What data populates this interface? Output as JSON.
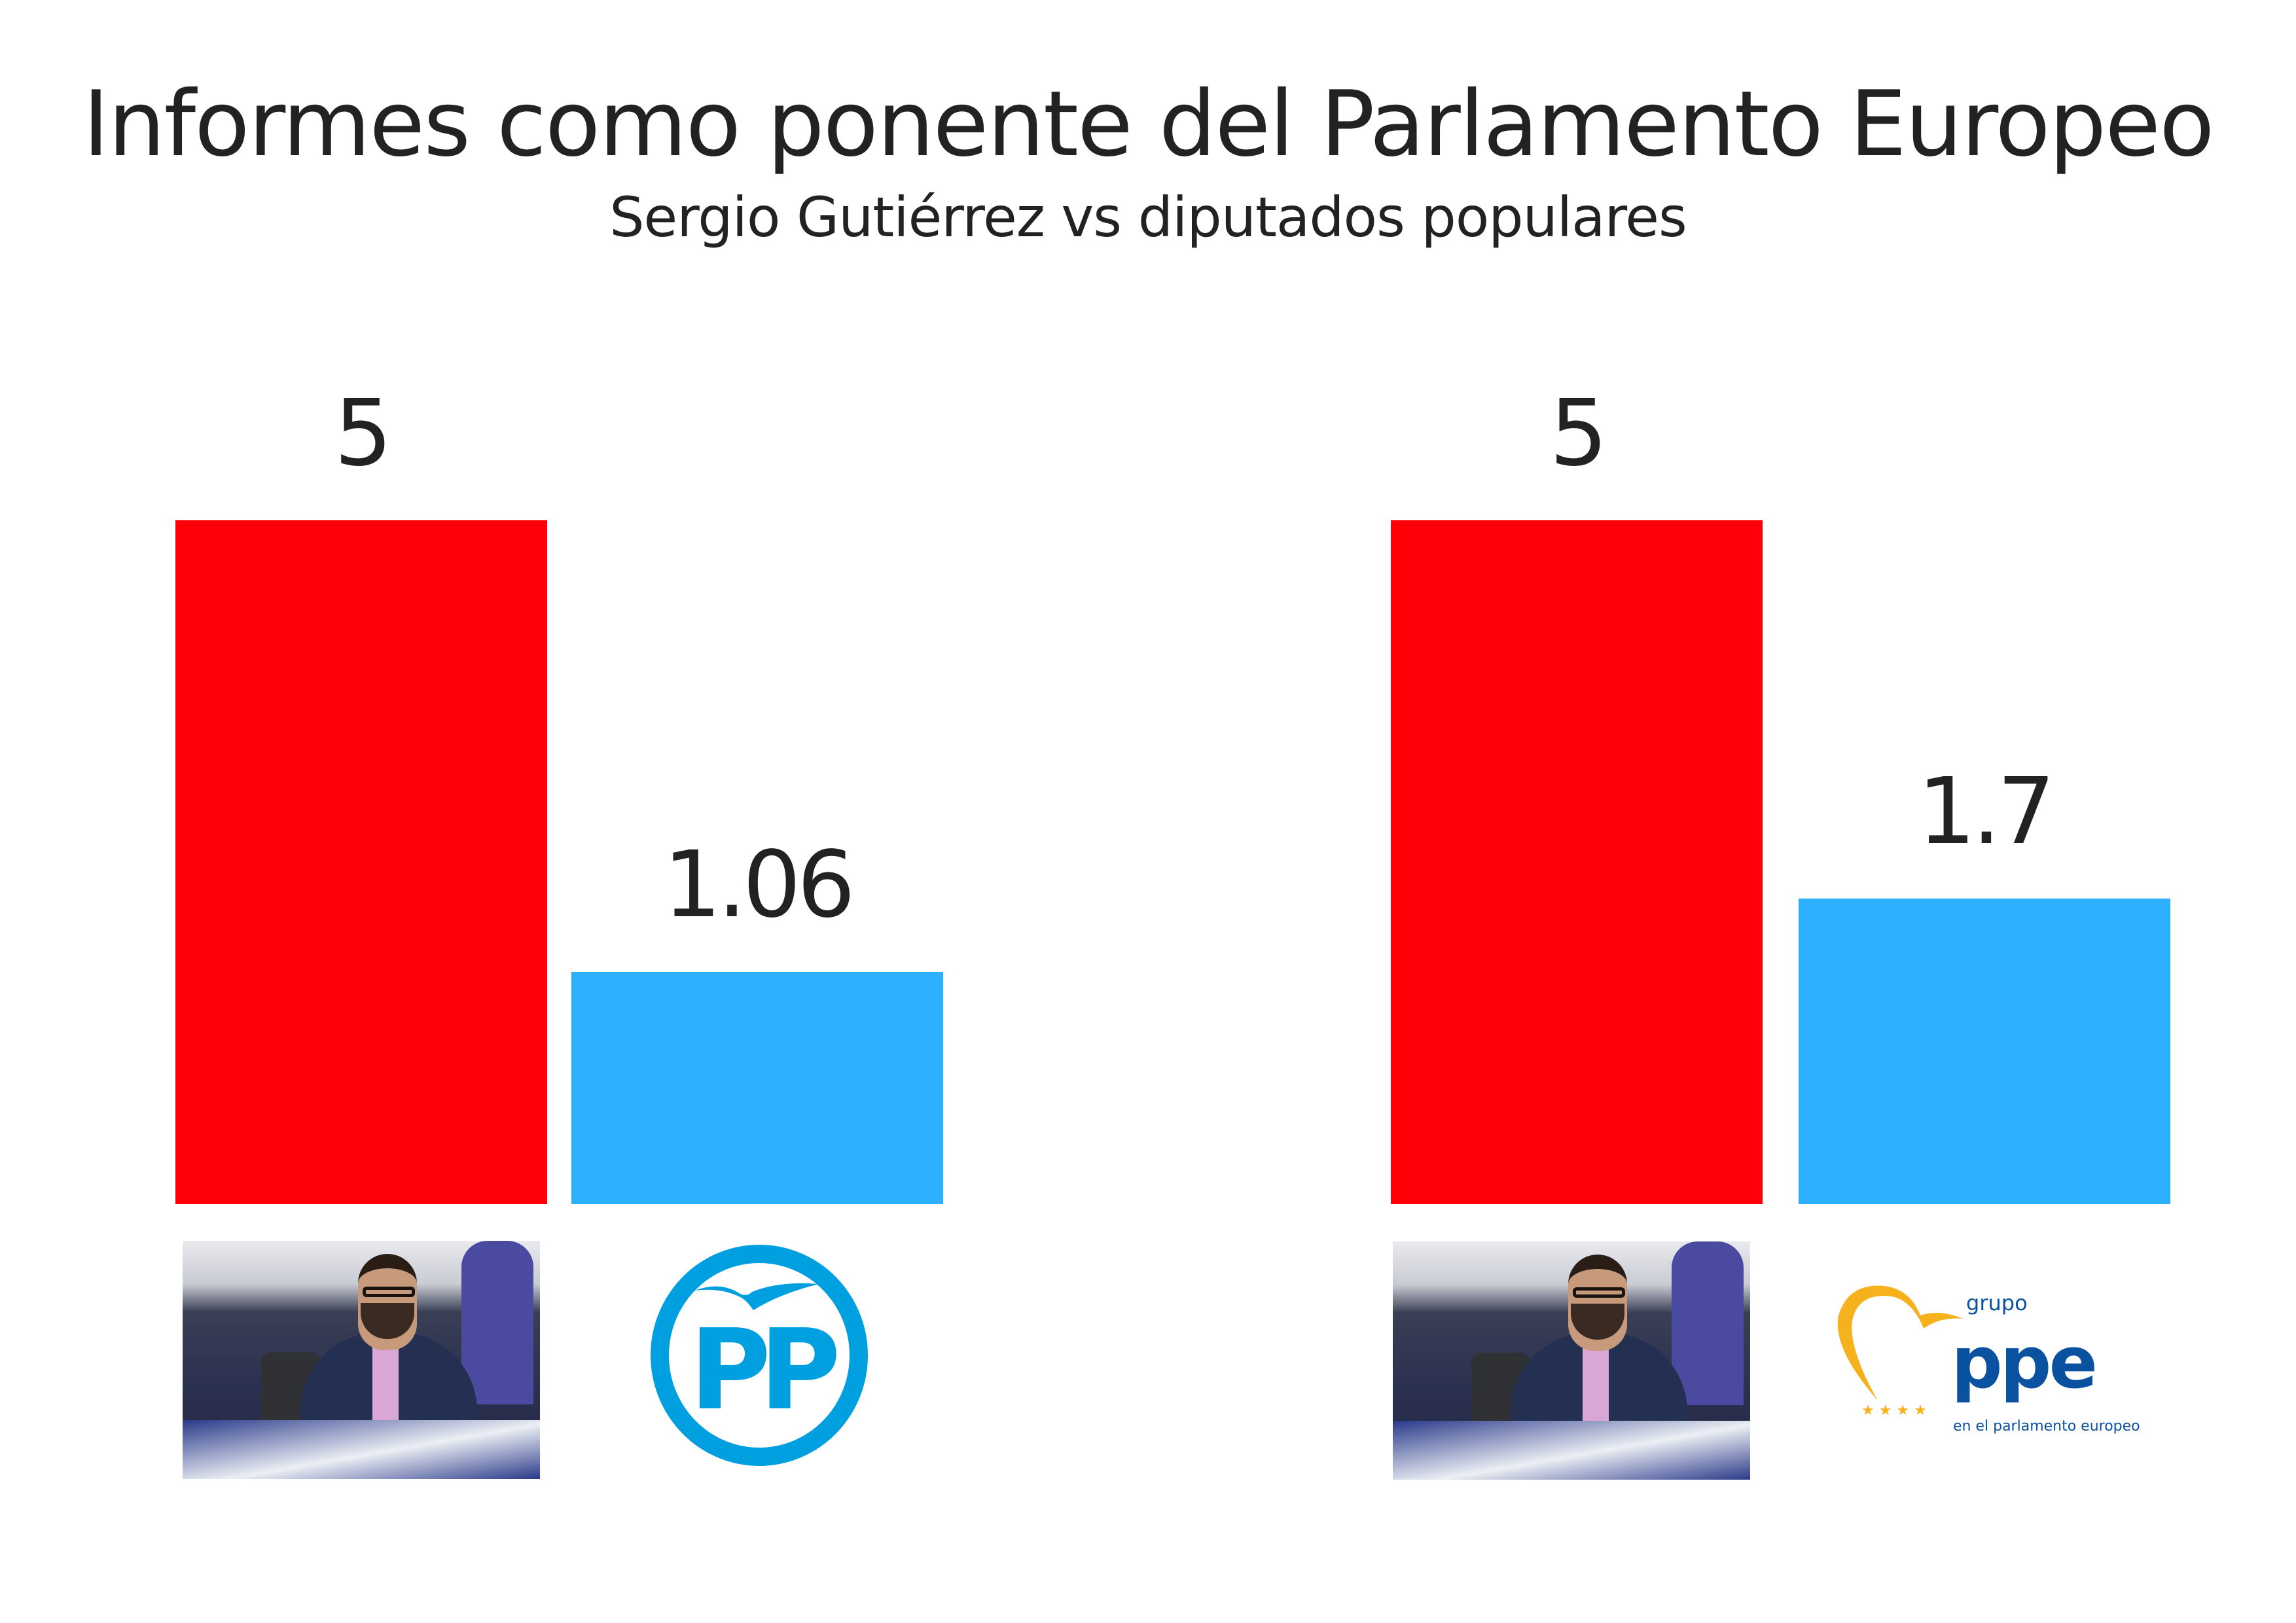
{
  "chart_data": [
    {
      "type": "bar",
      "title": "Informes como ponente del Parlamento Europeo",
      "subtitle": "Sergio Gutiérrez vs diputados populares",
      "categories": [
        "Sergio Gutiérrez",
        "PP"
      ],
      "values": [
        5,
        1.06
      ],
      "value_labels": [
        "5",
        "1.06"
      ],
      "colors": [
        "#ff0008",
        "#2cb0fd"
      ],
      "xlabel": "",
      "ylabel": "",
      "grid": false
    },
    {
      "type": "bar",
      "categories": [
        "Sergio Gutiérrez",
        "Grupo PPE"
      ],
      "values": [
        5,
        1.7
      ],
      "value_labels": [
        "5",
        "1.7"
      ],
      "colors": [
        "#ff0008",
        "#2cb0fd"
      ],
      "xlabel": "",
      "ylabel": "",
      "grid": false
    }
  ],
  "logos": {
    "pp": {
      "text": "PP",
      "color": "#009fe0"
    },
    "ppe": {
      "grupo": "grupo",
      "name": "ppe",
      "tagline": "en el parlamento europeo",
      "blue": "#0a52a0",
      "yellow": "#f5b21c"
    }
  }
}
